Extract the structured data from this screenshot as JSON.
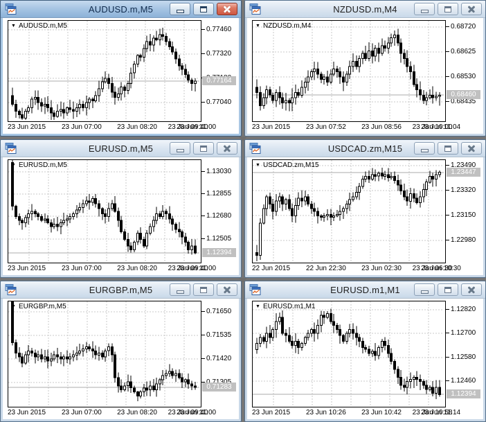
{
  "colors": {
    "mdi_background": "#757575",
    "active_title_text": "#102A4C",
    "inactive_title_text": "#1E1E1E",
    "chart_bg": "#FFFFFF",
    "chart_border": "#000000",
    "grid": "#CACACA",
    "bull": "#FFFFFF",
    "bear": "#000000",
    "candle_outline": "#000000",
    "price_line": "#ABABAB",
    "price_box_bg": "#C0C0C0",
    "price_box_text": "#FFFFFF",
    "close_button": "#CE5742"
  },
  "windows": [
    {
      "title": "AUDUSD.m,M5",
      "active": true,
      "legend": "AUDUSD.m,M5",
      "chart_data": {
        "type": "candlestick",
        "y_ticks": [
          "0.77460",
          "0.77320",
          "0.77180",
          "0.77040"
        ],
        "x_ticks": [
          "23 Jun 2015",
          "23 Jun 07:00",
          "23 Jun 08:20",
          "23 Jun 09:40",
          "23 Jun 11:00"
        ],
        "price_label": "0.77164",
        "y_min": 0.7694,
        "y_max": 0.7751,
        "open0": 0.7708,
        "wick": 0.00026,
        "closes": [
          0.7703,
          0.7699,
          0.7697,
          0.7695,
          0.7699,
          0.7701,
          0.7706,
          0.7707,
          0.7704,
          0.7702,
          0.7703,
          0.7701,
          0.7698,
          0.7696,
          0.7699,
          0.77,
          0.7698,
          0.7701,
          0.77,
          0.7699,
          0.7701,
          0.7703,
          0.7701,
          0.7704,
          0.7706,
          0.7705,
          0.7708,
          0.7712,
          0.7716,
          0.7718,
          0.7715,
          0.771,
          0.7707,
          0.7709,
          0.7713,
          0.7711,
          0.7715,
          0.7721,
          0.7726,
          0.7731,
          0.773,
          0.7735,
          0.7739,
          0.7737,
          0.7741,
          0.774,
          0.7743,
          0.7742,
          0.7739,
          0.7736,
          0.7733,
          0.7729,
          0.7725,
          0.7723,
          0.772,
          0.7717,
          0.7715,
          0.77164
        ]
      }
    },
    {
      "title": "NZDUSD.m,M4",
      "active": false,
      "legend": "NZDUSD.m,M4",
      "chart_data": {
        "type": "candlestick",
        "y_ticks": [
          "0.68720",
          "0.68625",
          "0.68530",
          "0.68435"
        ],
        "x_ticks": [
          "23 Jun 2015",
          "23 Jun 07:52",
          "23 Jun 08:56",
          "23 Jun 10:00",
          "23 Jun 11:04"
        ],
        "price_label": "0.68460",
        "y_min": 0.68365,
        "y_max": 0.68745,
        "open0": 0.6849,
        "wick": 0.0002,
        "closes": [
          0.6847,
          0.6842,
          0.6845,
          0.6848,
          0.6846,
          0.6844,
          0.6847,
          0.6845,
          0.6843,
          0.6844,
          0.6843,
          0.6845,
          0.6847,
          0.6846,
          0.6849,
          0.6851,
          0.6853,
          0.6855,
          0.6856,
          0.6854,
          0.6852,
          0.6853,
          0.6851,
          0.6854,
          0.6856,
          0.6855,
          0.6853,
          0.6851,
          0.6854,
          0.6857,
          0.6859,
          0.6857,
          0.686,
          0.6862,
          0.686,
          0.6863,
          0.6861,
          0.6864,
          0.6862,
          0.6865,
          0.6864,
          0.6866,
          0.6868,
          0.6869,
          0.6866,
          0.6862,
          0.686,
          0.6857,
          0.6855,
          0.685,
          0.6848,
          0.6846,
          0.6844,
          0.6845,
          0.6846,
          0.6845,
          0.68455,
          0.6846
        ]
      }
    },
    {
      "title": "EURUSD.m,M5",
      "active": false,
      "legend": "EURUSD.m,M5",
      "chart_data": {
        "type": "candlestick",
        "y_ticks": [
          "1.13030",
          "1.12855",
          "1.12680",
          "1.12505"
        ],
        "x_ticks": [
          "23 Jun 2015",
          "23 Jun 07:00",
          "23 Jun 08:20",
          "23 Jun 09:40",
          "23 Jun 11:00"
        ],
        "price_label": "1.12394",
        "y_min": 1.1233,
        "y_max": 1.1312,
        "open0": 1.131,
        "wick": 0.00034,
        "closes": [
          1.1276,
          1.1268,
          1.1265,
          1.1263,
          1.1267,
          1.127,
          1.1272,
          1.127,
          1.1268,
          1.1265,
          1.1266,
          1.1263,
          1.126,
          1.1262,
          1.126,
          1.1263,
          1.1265,
          1.1266,
          1.1268,
          1.127,
          1.1273,
          1.1275,
          1.1278,
          1.128,
          1.1279,
          1.1282,
          1.1278,
          1.1274,
          1.127,
          1.1268,
          1.1274,
          1.1278,
          1.1272,
          1.1265,
          1.1256,
          1.125,
          1.1245,
          1.1242,
          1.1248,
          1.1255,
          1.125,
          1.1245,
          1.1255,
          1.126,
          1.1265,
          1.127,
          1.1268,
          1.1272,
          1.127,
          1.1266,
          1.1262,
          1.1258,
          1.1256,
          1.1252,
          1.1248,
          1.1242,
          1.1245,
          1.12394
        ]
      }
    },
    {
      "title": "USDCAD.zm,M15",
      "active": false,
      "legend": "USDCAD.zm,M15",
      "chart_data": {
        "type": "candlestick",
        "y_ticks": [
          "1.23490",
          "1.23320",
          "1.23150",
          "1.22980"
        ],
        "x_ticks": [
          "22 Jun 2015",
          "22 Jun 22:30",
          "23 Jun 02:30",
          "23 Jun 06:30",
          "23 Jun 10:30"
        ],
        "price_label": "1.23447",
        "y_min": 1.2284,
        "y_max": 1.2353,
        "open0": 1.229,
        "wick": 0.0003,
        "closes": [
          1.2288,
          1.231,
          1.232,
          1.2328,
          1.2323,
          1.2318,
          1.2325,
          1.2328,
          1.2323,
          1.2326,
          1.232,
          1.2315,
          1.2322,
          1.2327,
          1.2325,
          1.2328,
          1.2323,
          1.232,
          1.2318,
          1.2315,
          1.2314,
          1.2315,
          1.2316,
          1.2314,
          1.2315,
          1.2316,
          1.2318,
          1.232,
          1.2323,
          1.2326,
          1.2328,
          1.2331,
          1.2335,
          1.234,
          1.2342,
          1.234,
          1.2343,
          1.2342,
          1.2344,
          1.2342,
          1.2343,
          1.2341,
          1.2342,
          1.2339,
          1.2336,
          1.2332,
          1.2328,
          1.2325,
          1.233,
          1.2327,
          1.2324,
          1.2328,
          1.2333,
          1.2338,
          1.2342,
          1.234,
          1.2343,
          1.23447
        ]
      }
    },
    {
      "title": "EURGBP.m,M5",
      "active": false,
      "legend": "EURGBP.m,M5",
      "chart_data": {
        "type": "candlestick",
        "y_ticks": [
          "0.71650",
          "0.71535",
          "0.71420",
          "0.71305"
        ],
        "x_ticks": [
          "23 Jun 2015",
          "23 Jun 07:00",
          "23 Jun 08:20",
          "23 Jun 09:40",
          "23 Jun 11:00"
        ],
        "price_label": "0.71283",
        "y_min": 0.71195,
        "y_max": 0.717,
        "open0": 0.717,
        "wick": 0.0002,
        "closes": [
          0.715,
          0.7145,
          0.7143,
          0.714,
          0.7144,
          0.7146,
          0.7145,
          0.7143,
          0.7144,
          0.7142,
          0.7143,
          0.7141,
          0.7142,
          0.7144,
          0.7143,
          0.7142,
          0.7143,
          0.7142,
          0.7143,
          0.7144,
          0.7145,
          0.7146,
          0.7147,
          0.7148,
          0.7147,
          0.7146,
          0.7144,
          0.7145,
          0.7143,
          0.7146,
          0.7148,
          0.7144,
          0.7133,
          0.7129,
          0.7127,
          0.7129,
          0.7131,
          0.7128,
          0.7126,
          0.7124,
          0.7126,
          0.7128,
          0.7127,
          0.7129,
          0.7127,
          0.713,
          0.7132,
          0.7134,
          0.7135,
          0.7136,
          0.7134,
          0.7135,
          0.7133,
          0.7131,
          0.7132,
          0.713,
          0.7129,
          0.71283
        ]
      }
    },
    {
      "title": "EURUSD.m1,M1",
      "active": false,
      "legend": "EURUSD.m1,M1",
      "chart_data": {
        "type": "candlestick",
        "y_ticks": [
          "1.12820",
          "1.12700",
          "1.12580",
          "1.12460"
        ],
        "x_ticks": [
          "23 Jun 2015",
          "23 Jun 10:26",
          "23 Jun 10:42",
          "23 Jun 10:58",
          "23 Jun 11:14"
        ],
        "price_label": "1.12394",
        "y_min": 1.1234,
        "y_max": 1.1286,
        "open0": 1.1262,
        "wick": 0.00024,
        "closes": [
          1.1265,
          1.1268,
          1.1266,
          1.127,
          1.1268,
          1.1272,
          1.1276,
          1.1278,
          1.127,
          1.1269,
          1.1266,
          1.1264,
          1.1266,
          1.1263,
          1.1265,
          1.1268,
          1.127,
          1.1272,
          1.127,
          1.1274,
          1.1279,
          1.1278,
          1.128,
          1.1276,
          1.1274,
          1.1272,
          1.1269,
          1.1266,
          1.127,
          1.1272,
          1.127,
          1.1268,
          1.1266,
          1.1263,
          1.1262,
          1.126,
          1.1261,
          1.1259,
          1.1263,
          1.1266,
          1.1264,
          1.126,
          1.1256,
          1.1252,
          1.1248,
          1.1244,
          1.1243,
          1.1246,
          1.1247,
          1.1248,
          1.1247,
          1.1246,
          1.1244,
          1.1242,
          1.1243,
          1.124,
          1.1243,
          1.12394
        ]
      }
    }
  ]
}
